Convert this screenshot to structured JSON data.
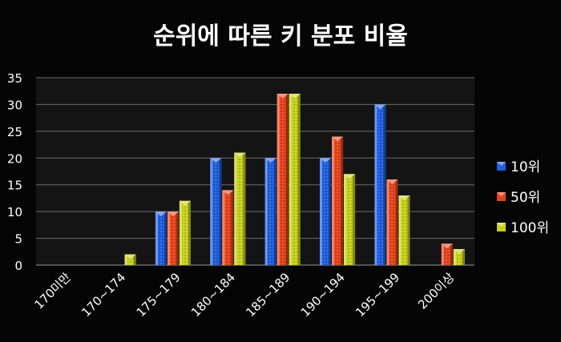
{
  "chart_data": {
    "type": "bar",
    "title": "순위에 따른 키 분포 비율",
    "xlabel": "",
    "ylabel": "",
    "categories": [
      "170미만",
      "170~174",
      "175~179",
      "180~184",
      "185~189",
      "190~194",
      "195~199",
      "200이상"
    ],
    "series": [
      {
        "name": "10위",
        "color": "#1f5fe0",
        "values": [
          0,
          0,
          10,
          20,
          20,
          20,
          30,
          0
        ]
      },
      {
        "name": "50위",
        "color": "#e8431c",
        "values": [
          0,
          0,
          10,
          14,
          32,
          24,
          16,
          4
        ]
      },
      {
        "name": "100위",
        "color": "#c6d21a",
        "values": [
          0,
          2,
          12,
          21,
          32,
          17,
          13,
          3
        ]
      }
    ],
    "ylim": [
      0,
      35
    ],
    "yticks": [
      0,
      5,
      10,
      15,
      20,
      25,
      30,
      35
    ],
    "grid": true,
    "legend_position": "right",
    "background": "#000000",
    "plot_background": "#141414",
    "text_color": "#ffffff",
    "grid_color": "#6a6a6a"
  }
}
